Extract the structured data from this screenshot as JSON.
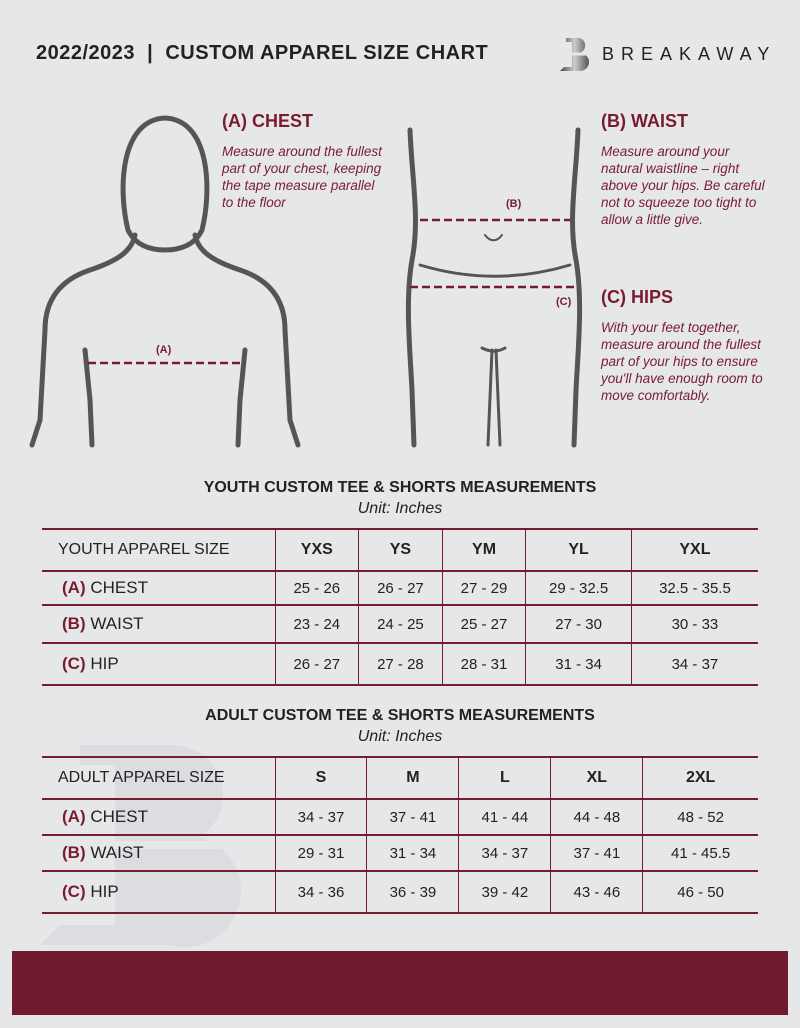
{
  "header": {
    "title": "2022/2023  |  CUSTOM APPAREL SIZE CHART",
    "brand": "BREAKAWAY"
  },
  "guide": {
    "chest": {
      "heading": "(A) CHEST",
      "text": "Measure around the fullest part of your chest, keeping the tape measure parallel to the floor",
      "marker": "(A)"
    },
    "waist": {
      "heading": "(B) WAIST",
      "text": "Measure around your natural waistline – right above your hips. Be careful not to squeeze too tight to allow a little give.",
      "marker": "(B)"
    },
    "hips": {
      "heading": "(C) HIPS",
      "text": "With your feet together, measure around the fullest part of your hips to ensure you'll have enough room to move comfortably.",
      "marker": "(C)"
    }
  },
  "youth": {
    "title": "YOUTH CUSTOM TEE & SHORTS MEASUREMENTS",
    "unit": "Unit: Inches",
    "header": "YOUTH APPAREL SIZE",
    "sizes": [
      "YXS",
      "YS",
      "YM",
      "YL",
      "YXL"
    ],
    "rows": [
      {
        "code": "(A)",
        "name": "CHEST",
        "values": [
          "25 - 26",
          "26 - 27",
          "27 - 29",
          "29 - 32.5",
          "32.5 - 35.5"
        ]
      },
      {
        "code": "(B)",
        "name": "WAIST",
        "values": [
          "23 - 24",
          "24 - 25",
          "25 - 27",
          "27 - 30",
          "30 - 33"
        ]
      },
      {
        "code": "(C)",
        "name": "HIP",
        "values": [
          "26 - 27",
          "27 - 28",
          "28 - 31",
          "31 - 34",
          "34 - 37"
        ]
      }
    ]
  },
  "adult": {
    "title": "ADULT CUSTOM TEE & SHORTS MEASUREMENTS",
    "unit": "Unit: Inches",
    "header": "ADULT APPAREL SIZE",
    "sizes": [
      "S",
      "M",
      "L",
      "XL",
      "2XL"
    ],
    "rows": [
      {
        "code": "(A)",
        "name": "CHEST",
        "values": [
          "34 - 37",
          "37 - 41",
          "41 - 44",
          "44 - 48",
          "48 - 52"
        ]
      },
      {
        "code": "(B)",
        "name": "WAIST",
        "values": [
          "29 - 31",
          "31 - 34",
          "34 - 37",
          "37 - 41",
          "41 - 45.5"
        ]
      },
      {
        "code": "(C)",
        "name": "HIP",
        "values": [
          "34 - 36",
          "36 - 39",
          "39 - 42",
          "43 - 46",
          "46 - 50"
        ]
      }
    ]
  },
  "colors": {
    "accent": "#7a1c30",
    "footer": "#701a2e",
    "background": "#e6e7e9"
  }
}
